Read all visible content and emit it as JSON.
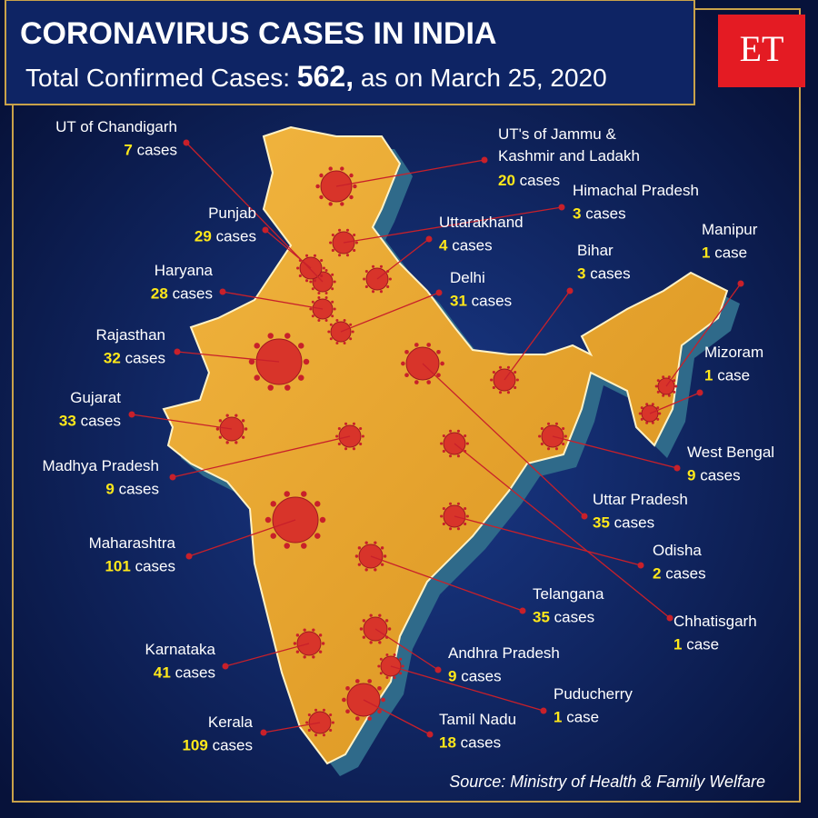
{
  "header": {
    "title": "CORONAVIRUS CASES IN INDIA",
    "subtitle_label": "Total Confirmed Cases:",
    "total": "562,",
    "subtitle_date": "as on March 25, 2020"
  },
  "logo": "ET",
  "states": [
    {
      "name_lines": [
        "UT of Chandigarh"
      ],
      "count": 7,
      "unit": "cases"
    },
    {
      "name_lines": [
        "UT's of Jammu &",
        "Kashmir and Ladakh"
      ],
      "count": 20,
      "unit": "cases"
    },
    {
      "name_lines": [
        "Himachal Pradesh"
      ],
      "count": 3,
      "unit": "cases"
    },
    {
      "name_lines": [
        "Punjab"
      ],
      "count": 29,
      "unit": "cases"
    },
    {
      "name_lines": [
        "Uttarakhand"
      ],
      "count": 4,
      "unit": "cases"
    },
    {
      "name_lines": [
        "Manipur"
      ],
      "count": 1,
      "unit": "case"
    },
    {
      "name_lines": [
        "Haryana"
      ],
      "count": 28,
      "unit": "cases"
    },
    {
      "name_lines": [
        "Delhi"
      ],
      "count": 31,
      "unit": "cases"
    },
    {
      "name_lines": [
        "Bihar"
      ],
      "count": 3,
      "unit": "cases"
    },
    {
      "name_lines": [
        "Rajasthan"
      ],
      "count": 32,
      "unit": "cases"
    },
    {
      "name_lines": [
        "Mizoram"
      ],
      "count": 1,
      "unit": "case"
    },
    {
      "name_lines": [
        "Gujarat"
      ],
      "count": 33,
      "unit": "cases"
    },
    {
      "name_lines": [
        "Madhya Pradesh"
      ],
      "count": 9,
      "unit": "cases"
    },
    {
      "name_lines": [
        "West Bengal"
      ],
      "count": 9,
      "unit": "cases"
    },
    {
      "name_lines": [
        "Uttar Pradesh"
      ],
      "count": 35,
      "unit": "cases"
    },
    {
      "name_lines": [
        "Maharashtra"
      ],
      "count": 101,
      "unit": "cases"
    },
    {
      "name_lines": [
        "Odisha"
      ],
      "count": 2,
      "unit": "cases"
    },
    {
      "name_lines": [
        "Telangana"
      ],
      "count": 35,
      "unit": "cases"
    },
    {
      "name_lines": [
        "Chhatisgarh"
      ],
      "count": 1,
      "unit": "case"
    },
    {
      "name_lines": [
        "Karnataka"
      ],
      "count": 41,
      "unit": "cases"
    },
    {
      "name_lines": [
        "Andhra Pradesh"
      ],
      "count": 9,
      "unit": "cases"
    },
    {
      "name_lines": [
        "Puducherry"
      ],
      "count": 1,
      "unit": "case"
    },
    {
      "name_lines": [
        "Kerala"
      ],
      "count": 109,
      "unit": "cases"
    },
    {
      "name_lines": [
        "Tamil Nadu"
      ],
      "count": 18,
      "unit": "cases"
    }
  ],
  "source": "Source: Ministry of Health & Family Welfare"
}
